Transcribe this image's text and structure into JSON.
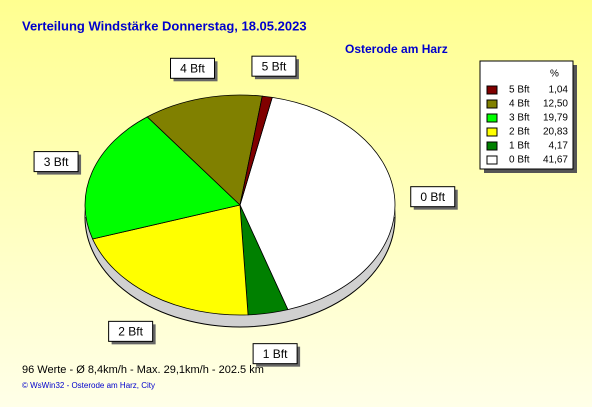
{
  "chart_data": {
    "type": "pie",
    "title": "Verteilung Windstärke  Donnerstag, 18.05.2023",
    "subtitle": "Osterode am Harz",
    "legend_title": "%",
    "categories": [
      "5 Bft",
      "4 Bft",
      "3 Bft",
      "2 Bft",
      "1 Bft",
      "0 Bft"
    ],
    "values": [
      1.04,
      12.5,
      19.79,
      20.83,
      4.17,
      41.67
    ],
    "value_labels": [
      "1,04",
      "12,50",
      "19,79",
      "20,83",
      "4,17",
      "41,67"
    ],
    "colors": [
      "#800000",
      "#808000",
      "#00ff00",
      "#ffff00",
      "#008000",
      "#ffffff"
    ],
    "footer": "96 Werte   -   Ø 8,4km/h  -  Max. 29,1km/h   -   202.5 km",
    "credit": "© WsWin32  -  Osterode am Harz, City"
  }
}
